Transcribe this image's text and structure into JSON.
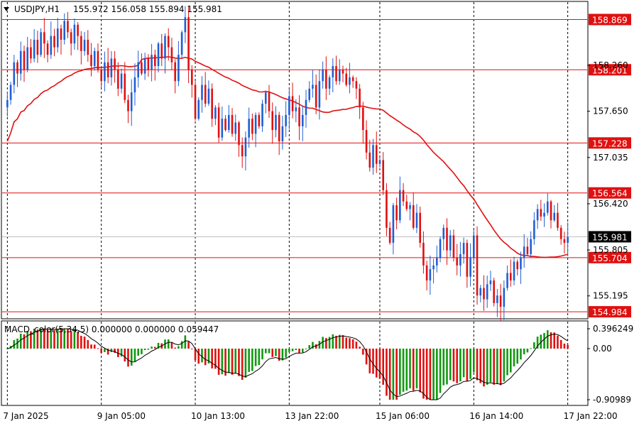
{
  "chart_header": {
    "symbol": "USDJPY,H1",
    "ohlc": "155.972 156.058 155.894 155.981"
  },
  "indicator_header": "MACD_color(5,34,5) 0.000000 0.000000 0.059447",
  "colors": {
    "bull_candle": "#1f5fd6",
    "bear_candle": "#e01010",
    "ma_line": "#e01010",
    "level_line": "#e01010",
    "level_label_bg": "#e01010",
    "current_price_bg": "#000000",
    "macd_up": "#119911",
    "macd_down": "#e01010",
    "signal_line": "#000000",
    "grid": "#000000",
    "bid_line": "#c0c0c0"
  },
  "chart_data": [
    {
      "type": "candlestick",
      "symbol": "USDJPY",
      "timeframe": "H1",
      "ylim": [
        154.9,
        159.1
      ],
      "price_ticks": [
        158.26,
        157.65,
        157.035,
        156.42,
        155.805,
        155.195
      ],
      "price_tick_labels": [
        "158.260",
        "157.650",
        "157.035",
        "156.420",
        "155.805",
        "155.195"
      ],
      "current_price": 155.981,
      "current_price_label": "155.981",
      "levels": [
        {
          "value": 158.869,
          "label": "158.869"
        },
        {
          "value": 158.201,
          "label": "158.201"
        },
        {
          "value": 157.228,
          "label": "157.228"
        },
        {
          "value": 156.564,
          "label": "156.564"
        },
        {
          "value": 155.704,
          "label": "155.704"
        },
        {
          "value": 154.984,
          "label": "154.984"
        }
      ],
      "time_labels": [
        "7 Jan 2025",
        "9 Jan 05:00",
        "10 Jan 13:00",
        "13 Jan 22:00",
        "15 Jan 06:00",
        "16 Jan 14:00",
        "17 Jan 22:00"
      ],
      "closes": [
        157.8,
        158.0,
        158.3,
        158.15,
        158.45,
        158.2,
        158.5,
        158.35,
        158.6,
        158.4,
        158.7,
        158.55,
        158.4,
        158.65,
        158.5,
        158.75,
        158.6,
        158.85,
        158.7,
        158.55,
        158.8,
        158.65,
        158.45,
        158.6,
        158.4,
        158.25,
        158.45,
        158.2,
        158.05,
        158.3,
        158.1,
        158.35,
        158.2,
        157.95,
        158.15,
        157.8,
        157.65,
        157.9,
        158.1,
        158.3,
        158.15,
        158.35,
        158.2,
        158.4,
        158.25,
        158.55,
        158.35,
        158.65,
        158.5,
        158.3,
        158.05,
        158.4,
        158.7,
        158.9,
        158.2,
        158.0,
        157.55,
        157.8,
        158.0,
        157.75,
        157.95,
        157.55,
        157.7,
        157.3,
        157.55,
        157.4,
        157.6,
        157.35,
        157.5,
        157.2,
        157.05,
        157.3,
        157.55,
        157.35,
        157.6,
        157.45,
        157.75,
        157.9,
        157.65,
        157.4,
        157.6,
        157.25,
        157.45,
        157.6,
        157.85,
        157.65,
        157.7,
        157.45,
        157.6,
        157.8,
        157.95,
        158.0,
        157.7,
        158.05,
        158.2,
        157.95,
        158.1,
        158.25,
        158.05,
        158.2,
        158.15,
        158.0,
        158.1,
        158.05,
        157.95,
        157.7,
        157.4,
        157.1,
        156.9,
        157.2,
        156.95,
        157.0,
        156.6,
        156.1,
        155.9,
        156.4,
        156.2,
        156.6,
        156.45,
        156.35,
        156.4,
        156.1,
        156.3,
        155.9,
        155.6,
        155.4,
        155.55,
        155.6,
        155.7,
        155.95,
        156.1,
        155.8,
        156.0,
        155.7,
        155.6,
        155.75,
        155.9,
        155.45,
        155.7,
        156.0,
        155.2,
        155.3,
        155.15,
        155.35,
        155.4,
        155.1,
        155.2,
        155.05,
        155.3,
        155.5,
        155.4,
        155.65,
        155.55,
        155.7,
        155.85,
        155.75,
        155.95,
        156.2,
        156.35,
        156.25,
        156.3,
        156.45,
        156.2,
        156.3,
        156.1,
        155.95,
        155.9,
        155.98
      ]
    },
    {
      "type": "bar",
      "name": "MACD_color(5,34,5)",
      "ylim": [
        -0.90989,
        0.396249
      ],
      "y_tick_labels": [
        "0.396249",
        "0.00",
        "-0.90989"
      ],
      "description_values": {
        "main": 0.0,
        "signal": 0.0,
        "third": 0.059447
      }
    }
  ]
}
